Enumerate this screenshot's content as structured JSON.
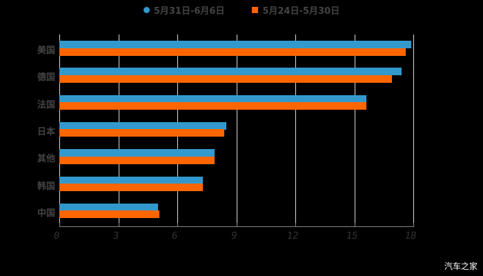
{
  "legend": [
    {
      "label": "5月31日-6月6日",
      "color": "#3399cc",
      "shape": "circle"
    },
    {
      "label": "5月24日-5月30日",
      "color": "#ff6600",
      "shape": "square"
    }
  ],
  "watermark": "汽车之家",
  "chart_data": {
    "type": "bar",
    "orientation": "horizontal",
    "title": "",
    "categories": [
      "美国",
      "德国",
      "法国",
      "日本",
      "其他",
      "韩国",
      "中国"
    ],
    "series": [
      {
        "name": "5月31日-6月6日",
        "color": "#3399cc",
        "values": [
          17.9,
          17.4,
          15.6,
          8.5,
          7.9,
          7.3,
          5.0
        ]
      },
      {
        "name": "5月24日-5月30日",
        "color": "#ff6600",
        "values": [
          17.6,
          16.9,
          15.6,
          8.4,
          7.9,
          7.3,
          5.1
        ]
      }
    ],
    "xticks": [
      "0",
      "3",
      "6",
      "9",
      "12",
      "15",
      "18"
    ],
    "xlim": [
      0,
      18
    ],
    "grid": true,
    "legend_position": "top"
  }
}
